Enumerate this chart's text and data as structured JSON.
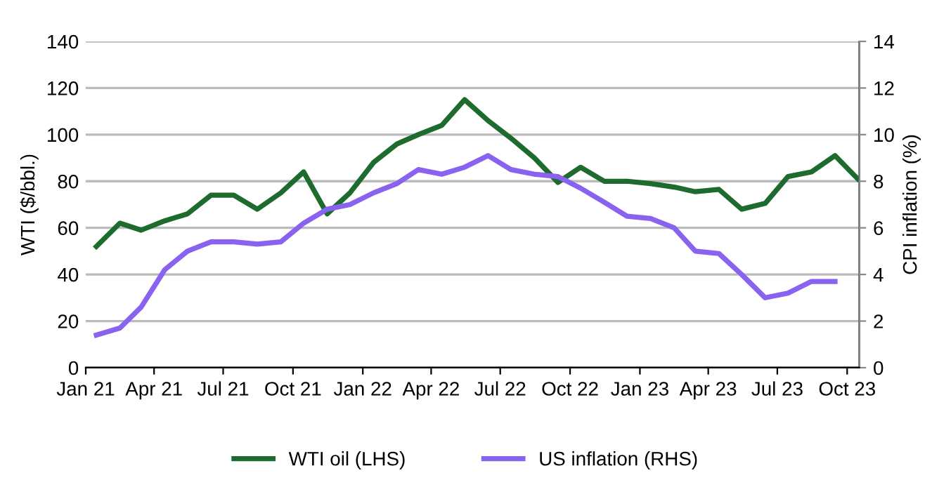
{
  "chart_data": {
    "type": "line",
    "xlabel": null,
    "ylabel": "WTI ($/bbl.)",
    "y2label": "CPI inflation (%)",
    "xlim": [
      "2021-01-01",
      "2023-10-17"
    ],
    "xticks": [
      {
        "value": "2021-01-01",
        "label": "Jan 21"
      },
      {
        "value": "2021-04-01",
        "label": "Apr 21"
      },
      {
        "value": "2021-07-01",
        "label": "Jul 21"
      },
      {
        "value": "2021-10-01",
        "label": "Oct 21"
      },
      {
        "value": "2022-01-01",
        "label": "Jan 22"
      },
      {
        "value": "2022-04-01",
        "label": "Apr 22"
      },
      {
        "value": "2022-07-01",
        "label": "Jul 22"
      },
      {
        "value": "2022-10-01",
        "label": "Oct 22"
      },
      {
        "value": "2023-01-01",
        "label": "Jan 23"
      },
      {
        "value": "2023-04-01",
        "label": "Apr 23"
      },
      {
        "value": "2023-07-01",
        "label": "Jul 23"
      },
      {
        "value": "2023-10-01",
        "label": "Oct 23"
      }
    ],
    "ylim": [
      0,
      140
    ],
    "yticks": [
      0,
      20,
      40,
      60,
      80,
      100,
      120,
      140
    ],
    "y2lim": [
      0,
      14
    ],
    "y2ticks": [
      0,
      2,
      4,
      6,
      8,
      10,
      12,
      14
    ],
    "grid": "y",
    "legend": "bottom",
    "line_style": "solid",
    "marker": "none",
    "series": [
      {
        "name": "WTI oil (LHS)",
        "color": "#1e6b2e",
        "axis": "y",
        "x": [
          "2021-01-15",
          "2021-02-15",
          "2021-03-15",
          "2021-04-15",
          "2021-05-15",
          "2021-06-15",
          "2021-07-15",
          "2021-08-15",
          "2021-09-15",
          "2021-10-15",
          "2021-11-15",
          "2021-12-15",
          "2022-01-15",
          "2022-02-15",
          "2022-03-15",
          "2022-04-15",
          "2022-05-15",
          "2022-06-15",
          "2022-07-15",
          "2022-08-15",
          "2022-09-15",
          "2022-10-15",
          "2022-11-15",
          "2022-12-15",
          "2023-01-15",
          "2023-02-15",
          "2023-03-15",
          "2023-04-15",
          "2023-05-15",
          "2023-06-15",
          "2023-07-15",
          "2023-08-15",
          "2023-09-15",
          "2023-10-15"
        ],
        "values": [
          52,
          62,
          59,
          63,
          66,
          74,
          74,
          68,
          75,
          84,
          66,
          75,
          88,
          96,
          100,
          104,
          115,
          106,
          98.5,
          90,
          79.5,
          86,
          80,
          80,
          79,
          77.5,
          75.5,
          76.5,
          68,
          70.5,
          82,
          84,
          91,
          81
        ]
      },
      {
        "name": "US inflation (RHS)",
        "color": "#8a62f0",
        "axis": "y2",
        "x": [
          "2021-01-15",
          "2021-02-15",
          "2021-03-15",
          "2021-04-15",
          "2021-05-15",
          "2021-06-15",
          "2021-07-15",
          "2021-08-15",
          "2021-09-15",
          "2021-10-15",
          "2021-11-15",
          "2021-12-15",
          "2022-01-15",
          "2022-02-15",
          "2022-03-15",
          "2022-04-15",
          "2022-05-15",
          "2022-06-15",
          "2022-07-15",
          "2022-08-15",
          "2022-09-15",
          "2022-10-15",
          "2022-11-15",
          "2022-12-15",
          "2023-01-15",
          "2023-02-15",
          "2023-03-15",
          "2023-04-15",
          "2023-05-15",
          "2023-06-15",
          "2023-07-15",
          "2023-08-15",
          "2023-09-15"
        ],
        "values": [
          1.4,
          1.7,
          2.6,
          4.2,
          5.0,
          5.4,
          5.4,
          5.3,
          5.4,
          6.2,
          6.8,
          7.0,
          7.5,
          7.9,
          8.5,
          8.3,
          8.6,
          9.1,
          8.5,
          8.3,
          8.2,
          7.7,
          7.1,
          6.5,
          6.4,
          6.0,
          5.0,
          4.9,
          4.0,
          3.0,
          3.2,
          3.7,
          3.7
        ]
      }
    ]
  }
}
